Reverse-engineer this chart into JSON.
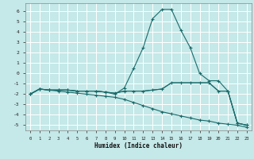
{
  "xlabel": "Humidex (Indice chaleur)",
  "background_color": "#c5e8e8",
  "grid_color": "#b0d8d8",
  "line_color": "#1a6b6b",
  "xlim": [
    -0.5,
    23.5
  ],
  "ylim": [
    -5.5,
    6.8
  ],
  "xticks": [
    0,
    1,
    2,
    3,
    4,
    5,
    6,
    7,
    8,
    9,
    10,
    11,
    12,
    13,
    14,
    15,
    16,
    17,
    18,
    19,
    20,
    21,
    22,
    23
  ],
  "yticks": [
    -5,
    -4,
    -3,
    -2,
    -1,
    0,
    1,
    2,
    3,
    4,
    5,
    6
  ],
  "line_peak_x": [
    0,
    1,
    2,
    3,
    4,
    5,
    6,
    7,
    8,
    9,
    10,
    11,
    12,
    13,
    14,
    15,
    16,
    17,
    18,
    19,
    20,
    21,
    22,
    23
  ],
  "line_peak_y": [
    -2.0,
    -1.5,
    -1.6,
    -1.6,
    -1.6,
    -1.7,
    -1.7,
    -1.7,
    -1.8,
    -2.0,
    -1.4,
    0.5,
    2.5,
    5.3,
    6.2,
    6.2,
    4.2,
    2.5,
    0.0,
    -0.7,
    -0.7,
    -1.7,
    -4.8,
    -5.0
  ],
  "line_flat1_x": [
    0,
    1,
    2,
    3,
    4,
    5,
    6,
    7,
    8,
    9,
    10,
    11,
    12,
    13,
    14,
    15,
    16,
    17,
    18,
    19,
    20,
    21,
    22,
    23
  ],
  "line_flat1_y": [
    -2.0,
    -1.5,
    -1.6,
    -1.6,
    -1.6,
    -1.7,
    -1.7,
    -1.7,
    -1.8,
    -1.9,
    -1.7,
    -1.7,
    -1.7,
    -1.6,
    -1.5,
    -0.9,
    -0.9,
    -0.9,
    -0.9,
    -0.9,
    -1.7,
    -1.7,
    -4.8,
    -5.0
  ],
  "line_flat2_x": [
    0,
    1,
    2,
    3,
    4,
    5,
    6,
    7,
    8,
    9,
    10,
    11,
    12,
    13,
    14,
    15,
    16,
    17,
    18,
    19,
    20,
    21,
    22,
    23
  ],
  "line_flat2_y": [
    -2.0,
    -1.5,
    -1.6,
    -1.6,
    -1.6,
    -1.7,
    -1.7,
    -1.7,
    -1.8,
    -1.9,
    -1.7,
    -1.7,
    -1.7,
    -1.6,
    -1.5,
    -0.9,
    -0.9,
    -0.9,
    -0.9,
    -0.9,
    -1.7,
    -1.7,
    -4.8,
    -5.0
  ],
  "line_diag_x": [
    0,
    1,
    2,
    3,
    4,
    5,
    6,
    7,
    8,
    9,
    10,
    11,
    12,
    13,
    14,
    15,
    16,
    17,
    18,
    19,
    20,
    21,
    22,
    23
  ],
  "line_diag_y": [
    -2.0,
    -1.5,
    -1.6,
    -1.7,
    -1.8,
    -1.9,
    -2.0,
    -2.1,
    -2.2,
    -2.3,
    -2.5,
    -2.8,
    -3.1,
    -3.4,
    -3.7,
    -3.9,
    -4.1,
    -4.3,
    -4.5,
    -4.6,
    -4.8,
    -4.9,
    -5.0,
    -5.2
  ]
}
